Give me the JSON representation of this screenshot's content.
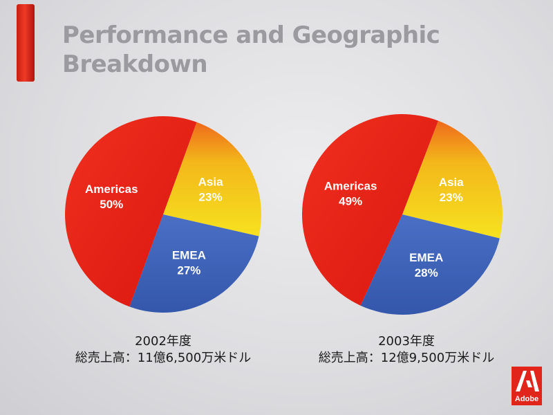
{
  "slide": {
    "title_line1": "Performance and Geographic",
    "title_line2": "Breakdown"
  },
  "chart_data": [
    {
      "type": "pie",
      "categories": [
        "Americas",
        "Asia",
        "EMEA"
      ],
      "values": [
        50,
        23,
        27
      ],
      "labels": [
        "50%",
        "23%",
        "27%"
      ],
      "colors": [
        "#e8241b",
        "#f3d21a",
        "#3f63b8"
      ],
      "caption_year": "2002年度",
      "caption_total": "総売上高：11億6,500万米ドル"
    },
    {
      "type": "pie",
      "categories": [
        "Americas",
        "Asia",
        "EMEA"
      ],
      "values": [
        49,
        23,
        28
      ],
      "labels": [
        "49%",
        "23%",
        "28%"
      ],
      "colors": [
        "#e8241b",
        "#f3d21a",
        "#3f63b8"
      ],
      "caption_year": "2003年度",
      "caption_total": "総売上高：12億9,500万米ドル"
    }
  ],
  "logo": {
    "text": "Adobe",
    "color": "#e1251b"
  }
}
